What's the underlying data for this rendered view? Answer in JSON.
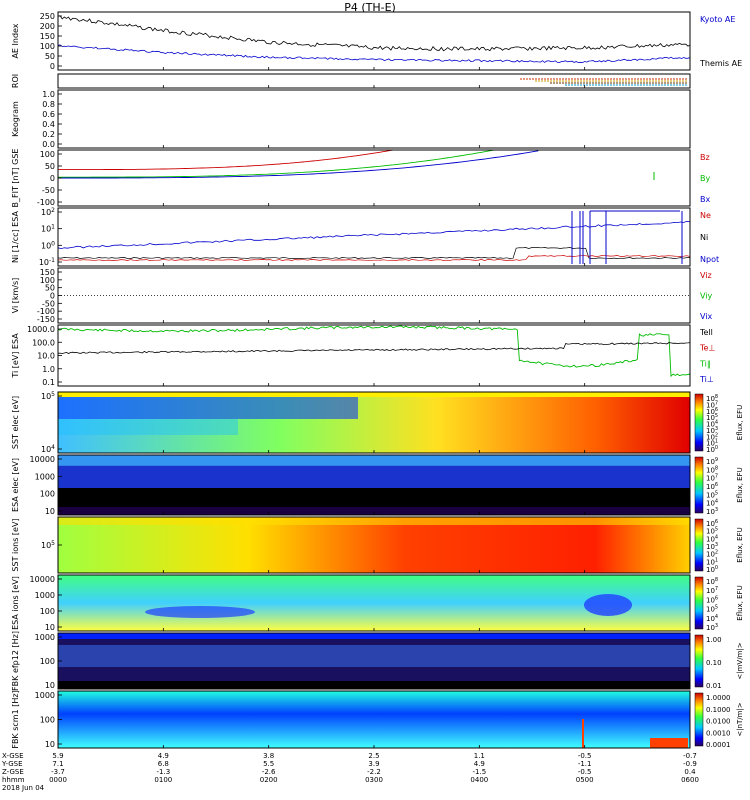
{
  "title": "P4 (TH-E)",
  "date_label": "2018 Jun 04",
  "panels": [
    {
      "id": "ae",
      "ylabel": "AE Index",
      "yticks": [
        "250",
        "200",
        "150",
        "100",
        "50",
        "0"
      ],
      "legend": [
        "Kyoto AE",
        "Themis AE"
      ]
    },
    {
      "id": "roi",
      "ylabel": "ROI",
      "yticks": [],
      "legend": []
    },
    {
      "id": "keogram",
      "ylabel": "Keogram",
      "yticks": [
        "1.0",
        "0.8",
        "0.6",
        "0.4",
        "0.2",
        "0.0"
      ],
      "legend": []
    },
    {
      "id": "bfit",
      "ylabel": "B_FIT [nT]",
      "sublabel": "GSE",
      "yticks": [
        "100",
        "50",
        "0",
        "-50",
        "-100"
      ],
      "legend": [
        "Bz",
        "By",
        "Bx"
      ]
    },
    {
      "id": "ni",
      "ylabel": "Ni [1/cc]",
      "sublabel": "ESA",
      "yticks": [
        "10^2",
        "10^1",
        "10^0",
        "10^-1"
      ],
      "legend": [
        "Ne",
        "Ni",
        "Npot"
      ]
    },
    {
      "id": "vi",
      "ylabel": "Vi [km/s]",
      "yticks": [
        "150",
        "100",
        "50",
        "0",
        "-50",
        "-100",
        "-150"
      ],
      "legend": [
        "Viz",
        "Viy",
        "Vix"
      ]
    },
    {
      "id": "ti",
      "ylabel": "Ti [eV]",
      "sublabel": "ESA",
      "yticks": [
        "1000.0",
        "100.0",
        "10.0",
        "1.0",
        "0.1"
      ],
      "legend": [
        "Tell",
        "Te⊥",
        "Ti‖",
        "Ti⊥"
      ]
    },
    {
      "id": "sst_e",
      "ylabel": "SST elec [eV]",
      "yticks": [
        "10^5",
        "10^4"
      ],
      "cbar": [
        "10^8",
        "10^7",
        "10^6",
        "10^5",
        "10^4",
        "10^3",
        "10^2",
        "10^1",
        "10^0"
      ],
      "cbar_label": "Eflux, EFU"
    },
    {
      "id": "esa_e",
      "ylabel": "ESA elec [eV]",
      "yticks": [
        "10000",
        "1000",
        "100",
        "10"
      ],
      "cbar": [
        "10^9",
        "10^8",
        "10^7",
        "10^6",
        "10^5",
        "10^4",
        "10^3"
      ],
      "cbar_label": "Eflux, EFU"
    },
    {
      "id": "sst_i",
      "ylabel": "SST ions [eV]",
      "yticks": [
        "10^5"
      ],
      "cbar": [
        "10^6",
        "10^5",
        "10^4",
        "10^3",
        "10^2",
        "10^1",
        "10^0"
      ],
      "cbar_label": "Eflux, EFU"
    },
    {
      "id": "esa_i",
      "ylabel": "ESA ions [eV]",
      "yticks": [
        "10000",
        "1000",
        "100",
        "10"
      ],
      "cbar": [
        "10^8",
        "10^7",
        "10^6",
        "10^5",
        "10^4",
        "10^3"
      ],
      "cbar_label": "Eflux, EFU"
    },
    {
      "id": "fbk_e12",
      "ylabel": "FBK efp12 [Hz]",
      "yticks": [
        "1000",
        "100",
        "10"
      ],
      "cbar": [
        "1.00",
        "0.10",
        "0.01"
      ],
      "cbar_label": "<|mV/m|>"
    },
    {
      "id": "fbk_scm",
      "ylabel": "FBK scm1 [Hz]",
      "yticks": [
        "1000",
        "100",
        "10"
      ],
      "cbar": [
        "1.0000",
        "0.1000",
        "0.0100",
        "0.0010",
        "0.0001"
      ],
      "cbar_label": "<|nT/m|>"
    }
  ],
  "xaxis": {
    "row_labels": [
      "X-GSE",
      "Y-GSE",
      "Z-GSE",
      "hhmm"
    ],
    "columns": [
      {
        "x": "5.9",
        "y": "7.1",
        "z": "-3.7",
        "t": "0000"
      },
      {
        "x": "4.9",
        "y": "6.8",
        "z": "-1.3",
        "t": "0100"
      },
      {
        "x": "3.8",
        "y": "5.5",
        "z": "-2.6",
        "t": "0200"
      },
      {
        "x": "2.5",
        "y": "3.9",
        "z": "-2.2",
        "t": "0300"
      },
      {
        "x": "1.1",
        "y": "4.9",
        "z": "-1.5",
        "t": "0400"
      },
      {
        "x": "-0.5",
        "y": "-1.1",
        "z": "-0.5",
        "t": "0500"
      },
      {
        "x": "-0.7",
        "y": "-0.9",
        "z": "0.4",
        "t": "0600"
      }
    ]
  },
  "colors": {
    "kyoto": "#0000cc",
    "themis": "#000000",
    "bz": "#cc0000",
    "by": "#00bb00",
    "bx": "#0000cc"
  },
  "chart_data": [
    {
      "type": "line",
      "title": "P4 (TH-E)",
      "ylabel": "AE Index",
      "x": [
        "0000",
        "0100",
        "0200",
        "0300",
        "0400",
        "0500",
        "0600"
      ],
      "ylim": [
        0,
        250
      ],
      "series": [
        {
          "name": "Themis AE",
          "values": [
            230,
            170,
            120,
            95,
            90,
            95,
            110
          ]
        },
        {
          "name": "Kyoto AE",
          "values": [
            105,
            75,
            55,
            45,
            40,
            35,
            55
          ]
        }
      ]
    },
    {
      "type": "line",
      "ylabel": "B_FIT [nT]",
      "x": [
        "0000",
        "0100",
        "0200",
        "0300",
        "0400",
        "0500",
        "0600"
      ],
      "ylim": [
        -100,
        100
      ],
      "series": [
        {
          "name": "Bz",
          "values": [
            35,
            45,
            60,
            95,
            100,
            100,
            100
          ]
        },
        {
          "name": "By",
          "values": [
            5,
            10,
            20,
            40,
            90,
            100,
            100
          ]
        },
        {
          "name": "Bx",
          "values": [
            0,
            5,
            10,
            20,
            45,
            100,
            100
          ]
        }
      ]
    },
    {
      "type": "line",
      "ylabel": "Ti [eV]",
      "x": [
        "0000",
        "0100",
        "0200",
        "0300",
        "0400",
        "0500",
        "0600"
      ],
      "ylog": true,
      "series": [
        {
          "name": "Ti‖",
          "values": [
            1500,
            1500,
            1600,
            1400,
            1200,
            60,
            500
          ]
        },
        {
          "name": "Tell",
          "values": [
            60,
            80,
            110,
            110,
            100,
            200,
            150
          ]
        }
      ]
    }
  ]
}
